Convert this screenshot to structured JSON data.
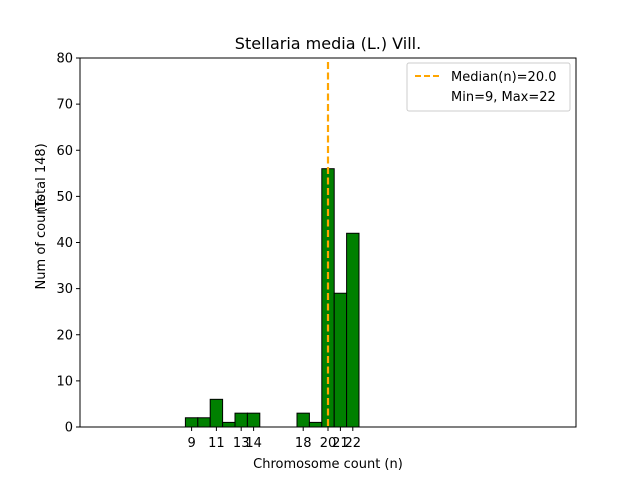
{
  "chart_data": {
    "type": "bar",
    "title": "Stellaria media (L.) Vill.",
    "xlabel": "Chromosome count (n)",
    "ylabel": "Num of counts",
    "ylabel_secondary": "(Total 148)",
    "xlim": [
      0,
      40
    ],
    "ylim": [
      0,
      80
    ],
    "yticks": [
      0,
      10,
      20,
      30,
      40,
      50,
      60,
      70,
      80
    ],
    "xticks": [
      9,
      11,
      13,
      14,
      18,
      20,
      21,
      22
    ],
    "x": [
      9,
      10,
      11,
      12,
      13,
      14,
      18,
      19,
      20,
      21,
      22
    ],
    "values": [
      2,
      2,
      6,
      1,
      3,
      3,
      3,
      1,
      56,
      29,
      42
    ],
    "bar_color": "#008000",
    "bar_edge_color": "#000000",
    "baseline_extent": [
      0,
      25
    ],
    "median": 20.0,
    "median_color": "#ffa500",
    "legend": {
      "position": "top-right",
      "entries": [
        "Median(n)=20.0",
        "Min=9, Max=22"
      ]
    },
    "grid": false
  }
}
